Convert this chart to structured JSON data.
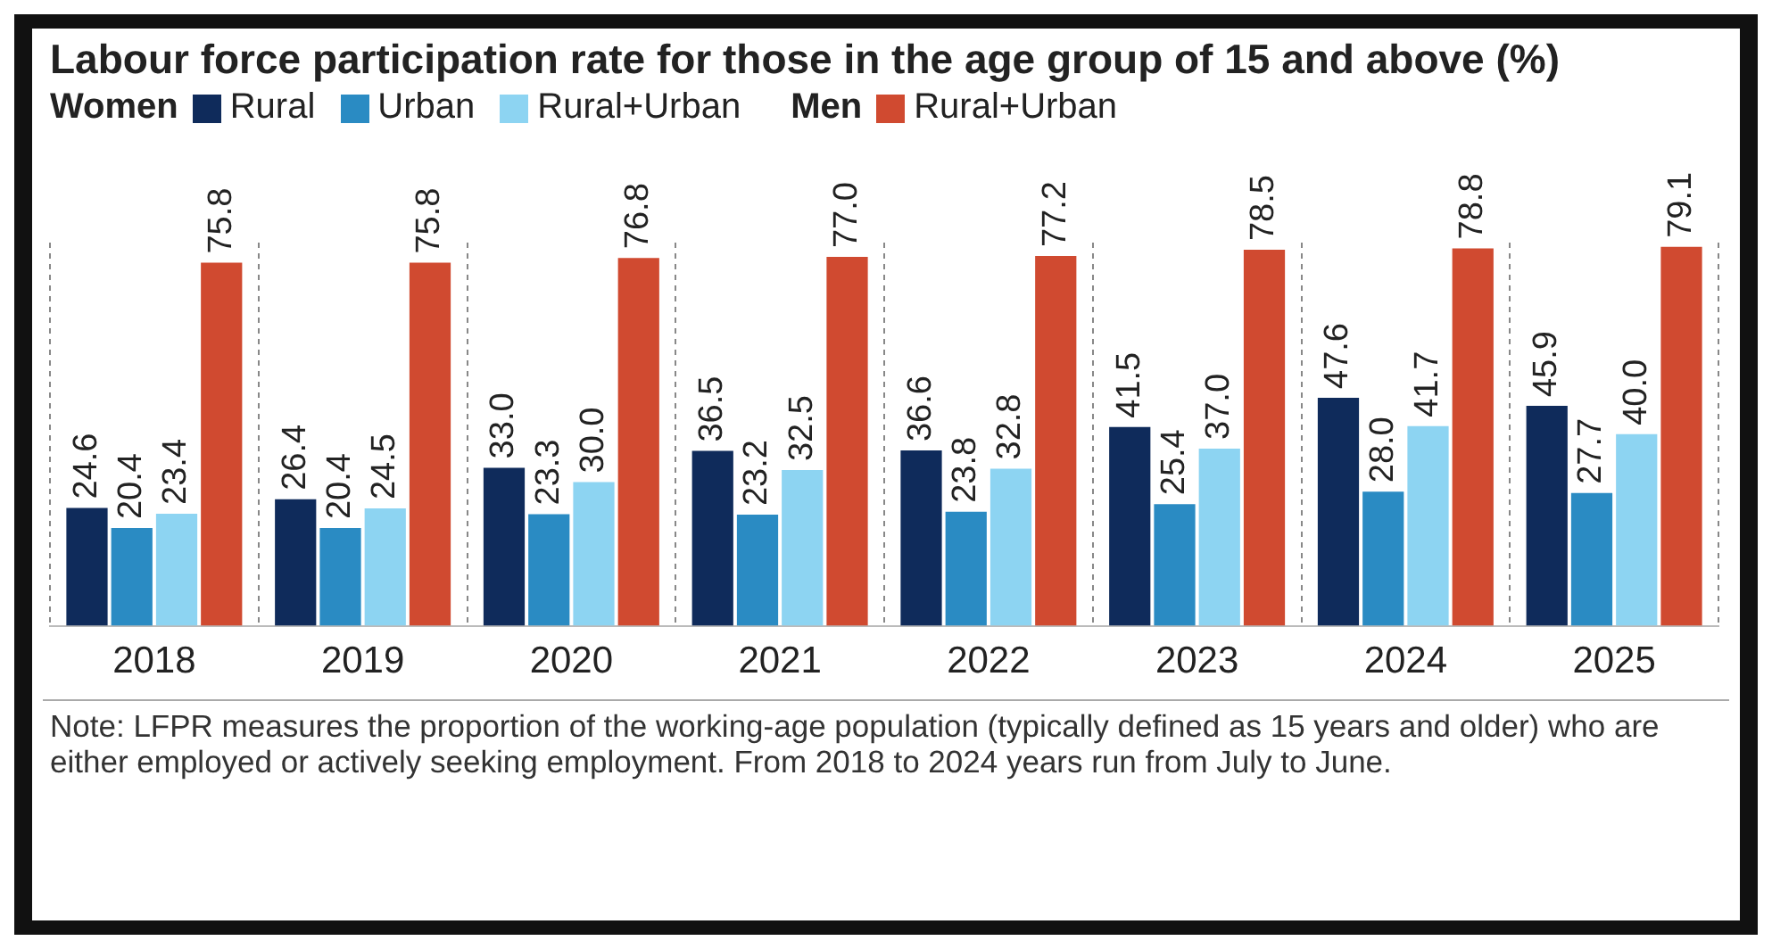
{
  "chart_data": {
    "type": "bar",
    "title": "Labour force participation rate for those in the age group of 15 and above  (%)",
    "categories": [
      "2018",
      "2019",
      "2020",
      "2021",
      "2022",
      "2023",
      "2024",
      "2025"
    ],
    "series": [
      {
        "name": "Rural",
        "color": "#0f2b5b",
        "values": [
          24.6,
          26.4,
          33.0,
          36.5,
          36.6,
          41.5,
          47.6,
          45.9
        ],
        "value_labels": [
          "24.6",
          "26.4",
          "33.0",
          "36.5",
          "36.6",
          "41.5",
          "47.6",
          "45.9"
        ]
      },
      {
        "name": "Urban",
        "color": "#2a8bc3",
        "values": [
          20.4,
          20.4,
          23.3,
          23.2,
          23.8,
          25.4,
          28.0,
          27.7
        ],
        "value_labels": [
          "20.4",
          "20.4",
          "23.3",
          "23.2",
          "23.8",
          "25.4",
          "28.0",
          "27.7"
        ]
      },
      {
        "name": "Rural+Urban",
        "color": "#8dd4f2",
        "values": [
          23.4,
          24.5,
          30.0,
          32.5,
          32.8,
          37.0,
          41.7,
          40.0
        ],
        "value_labels": [
          "23.4",
          "24.5",
          "30.0",
          "32.5",
          "32.8",
          "37.0",
          "41.7",
          "40.0"
        ]
      },
      {
        "name": "Rural+Urban",
        "color": "#d04a30",
        "values": [
          75.8,
          75.8,
          76.8,
          77.0,
          77.2,
          78.5,
          78.8,
          79.1
        ],
        "value_labels": [
          "75.8",
          "75.8",
          "76.8",
          "77.0",
          "77.2",
          "78.5",
          "78.8",
          "79.1"
        ]
      }
    ],
    "annotations": [
      "Women",
      "Men",
      "Note: LFPR measures the proportion of the working-age population (typically defined as 15 years and older) who are either employed or actively seeking employment. From 2018 to 2024 years run from July to June."
    ],
    "grid": "x",
    "legend": "top"
  }
}
